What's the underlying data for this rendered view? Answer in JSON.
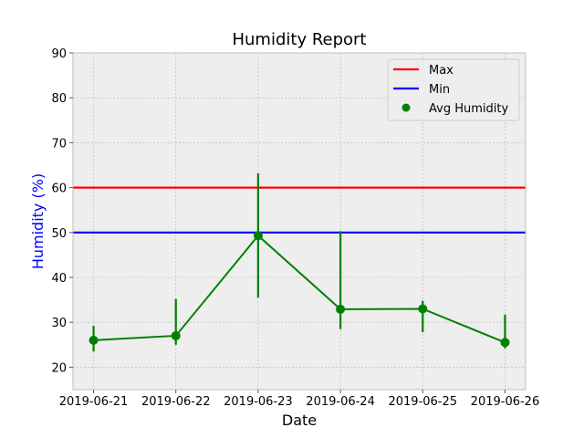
{
  "chart_data": {
    "type": "line",
    "title": "Humidity Report",
    "xlabel": "Date",
    "ylabel": "Humidity (%)",
    "ylim": [
      15,
      90
    ],
    "yticks": [
      20,
      30,
      40,
      50,
      60,
      70,
      80,
      90
    ],
    "grid": true,
    "legend_position": "top-right",
    "categories": [
      "2019-06-21",
      "2019-06-22",
      "2019-06-23",
      "2019-06-24",
      "2019-06-25",
      "2019-06-26"
    ],
    "series": [
      {
        "name": "Avg Humidity",
        "color": "#008000",
        "values": [
          26.0,
          27.0,
          49.3,
          32.9,
          33.0,
          25.5
        ],
        "error_low": [
          23.5,
          25.0,
          35.5,
          28.5,
          27.8,
          24.2
        ],
        "error_high": [
          29.2,
          35.2,
          63.2,
          50.3,
          34.8,
          31.7
        ]
      }
    ],
    "reference_lines": [
      {
        "name": "Max",
        "value": 60,
        "color": "#ff0000"
      },
      {
        "name": "Min",
        "value": 50,
        "color": "#0000ff"
      }
    ]
  }
}
